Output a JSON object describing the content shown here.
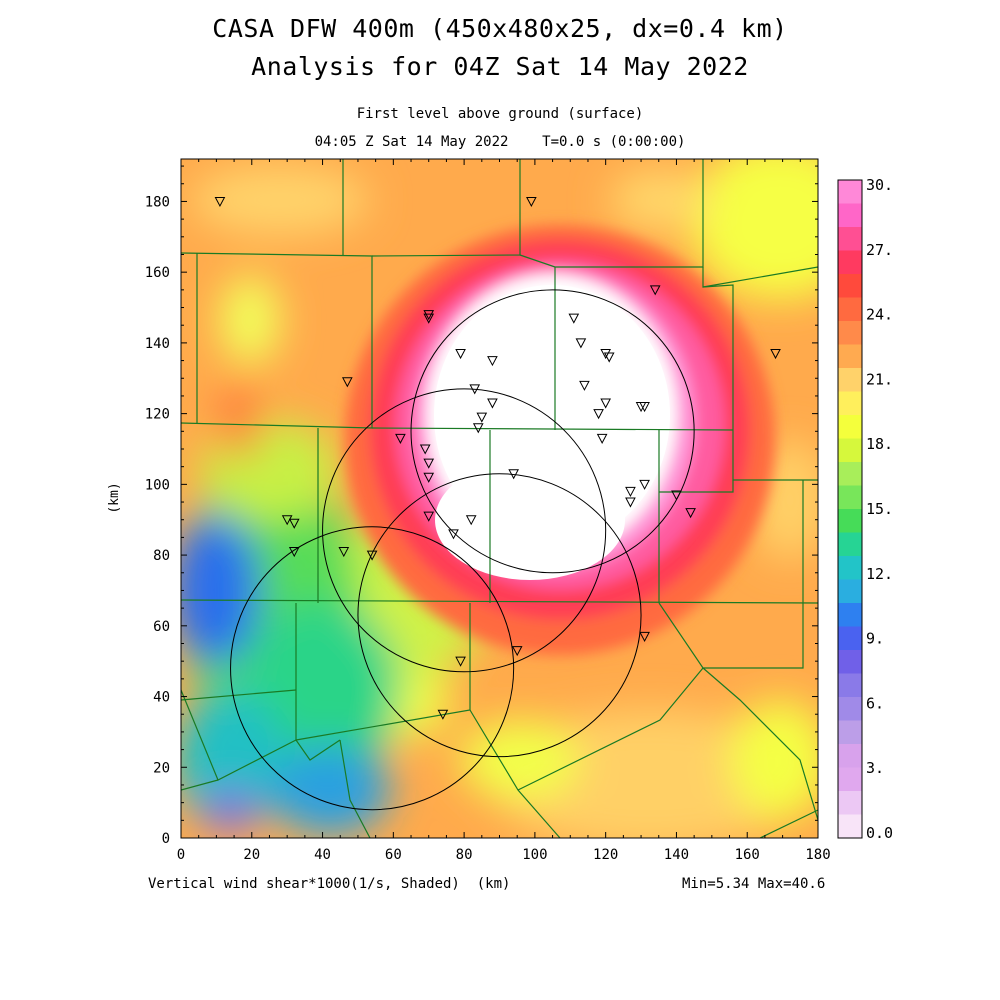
{
  "header": {
    "title_line1": "CASA DFW 400m (450x480x25, dx=0.4 km)",
    "title_line2": "Analysis for 04Z Sat 14 May 2022",
    "subtitle_line1": "First level above ground (surface)",
    "subtitle_line2": "04:05 Z Sat 14 May 2022    T=0.0 s (0:00:00)"
  },
  "footer": {
    "variable_label": "Vertical wind shear*1000(1/s, Shaded)  (km)",
    "minmax": "Min=5.34 Max=40.6"
  },
  "chart_data": {
    "type": "heatmap",
    "title": "CASA DFW 400m (450x480x25, dx=0.4 km)",
    "ylabel": "(km)",
    "xlim": [
      0,
      180
    ],
    "ylim": [
      0,
      192
    ],
    "x_ticks": [
      "0",
      "20",
      "40",
      "60",
      "80",
      "100",
      "120",
      "140",
      "160",
      "180"
    ],
    "y_ticks": [
      "0",
      "20",
      "40",
      "60",
      "80",
      "100",
      "120",
      "140",
      "160",
      "180"
    ],
    "colorbar_labels": [
      "30.",
      "27.",
      "24.",
      "21.",
      "18.",
      "15.",
      "12.",
      "9.",
      "6.",
      "3.",
      "0.0"
    ],
    "colorbar_colors": [
      "#ff88d8",
      "#ff66c8",
      "#ff4f93",
      "#ff3a60",
      "#ff4a3c",
      "#ff6a40",
      "#ff8a4a",
      "#ffaa50",
      "#ffd26a",
      "#ffef5c",
      "#f4ff3c",
      "#d6f83c",
      "#a8ee5a",
      "#78e65a",
      "#46dc58",
      "#26d494",
      "#22c4c8",
      "#2aaee0",
      "#2e80f0",
      "#4a62f0",
      "#7060e8",
      "#8a7ae8",
      "#a08ae8",
      "#bc9ee8",
      "#d8a2ec",
      "#e0a8ee",
      "#ecc8f4",
      "#f8e4f8"
    ],
    "radar_rings": [
      {
        "center_km": [
          105,
          115
        ],
        "radius_km": 40
      },
      {
        "center_km": [
          80,
          87
        ],
        "radius_km": 40
      },
      {
        "center_km": [
          90,
          63
        ],
        "radius_km": 40
      },
      {
        "center_km": [
          54,
          48
        ],
        "radius_km": 40
      }
    ],
    "stations_km": [
      [
        11,
        180
      ],
      [
        99,
        180
      ],
      [
        134,
        155
      ],
      [
        70,
        148
      ],
      [
        70,
        147
      ],
      [
        111,
        147
      ],
      [
        168,
        137
      ],
      [
        79,
        137
      ],
      [
        88,
        135
      ],
      [
        113,
        140
      ],
      [
        120,
        137
      ],
      [
        121,
        136
      ],
      [
        47,
        129
      ],
      [
        114,
        128
      ],
      [
        83,
        127
      ],
      [
        88,
        123
      ],
      [
        130,
        122
      ],
      [
        131,
        122
      ],
      [
        120,
        123
      ],
      [
        118,
        120
      ],
      [
        85,
        119
      ],
      [
        84,
        116
      ],
      [
        62,
        113
      ],
      [
        119,
        113
      ],
      [
        69,
        110
      ],
      [
        70,
        106
      ],
      [
        94,
        103
      ],
      [
        70,
        102
      ],
      [
        131,
        100
      ],
      [
        127,
        98
      ],
      [
        140,
        97
      ],
      [
        127,
        95
      ],
      [
        144,
        92
      ],
      [
        70,
        91
      ],
      [
        82,
        90
      ],
      [
        30,
        90
      ],
      [
        32,
        89
      ],
      [
        77,
        86
      ],
      [
        32,
        81
      ],
      [
        46,
        81
      ],
      [
        54,
        80
      ],
      [
        131,
        57
      ],
      [
        95,
        53
      ],
      [
        79,
        50
      ],
      [
        74,
        35
      ]
    ],
    "extrema": {
      "min": 5.34,
      "max": 40.6
    }
  }
}
